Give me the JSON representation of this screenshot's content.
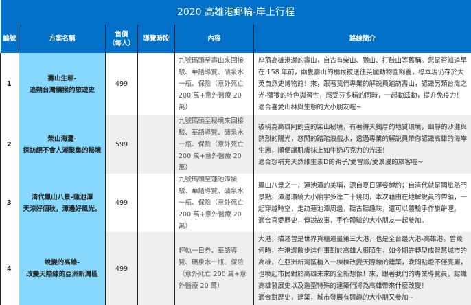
{
  "title": "2020 高雄港郵輪-岸上行程",
  "headers": {
    "no": "編號",
    "name": "方案名稱",
    "price": "售價",
    "price_unit": "（每人）",
    "slot": "導覽時段",
    "content": "內容",
    "desc": "路線簡介"
  },
  "colors": {
    "header": "#0070C8",
    "name_cell": "#87D8FF",
    "alt_row": "#EFEFEF"
  },
  "rows": [
    {
      "no": "1",
      "name1": "壽山生態-",
      "name2": "追朔台灣獼猴的旅遊史",
      "price": "499",
      "slot": "",
      "content": "九號碼頭至壽山來回接駁、華語導覽、礦泉水一瓶、保險（意外死亡 200 萬+意外醫療 20 萬）",
      "desc": "座落高雄港邊的壽山，自古有柴山、猴山、打鼓山等舊稱。您是否知道早在 158 年前，兩隻壽山的獼猴被送往英國動物園飼養，標本現仍存於大英自然史博物館！來，跟著我們專業的解說員踏訪壽山，認識另類台灣之光-獼猴的特色與習性，感受芬多精的同時，一起動茲動，提升免疫力！",
      "desc2": "適合喜愛山林與生態的大小朋友喔~"
    },
    {
      "no": "2",
      "name1": "柴山海灘-",
      "name2": "探訪絕不會人潮聚集的秘境",
      "price": "599",
      "slot": "",
      "content": "九號碼頭至秘境來回接駁、華語導覽、礦泉水一瓶、保險（意外死亡 200 萬+意外醫療 20 萬）",
      "desc": "被稱為高雄阿朗壹的柴山秘境，有著得天獨厚的地質環境，幽靜的沙灘與熱烈的陽光，悠閒的踏踏浪戲水，透過專業的解說員帶你認識高雄的海岸生態，順便讓肌膚抹上如牛奶巧克力的光澤！",
      "desc2": "適合想補充天然維生素D的親子/愛冒險/愛浪漫的旅客喔~"
    },
    {
      "no": "3",
      "name1": "清代鳳山八景-蓮池潭",
      "name2": "天涼好個秋，潭邊好風光。",
      "price": "499",
      "slot": "",
      "content": "九號碼頭至蓮池潭接駁、華語導覽、礦泉水一瓶、保險（意外死亡 200 萬+意外醫療 20 萬）",
      "desc": "鳳山八景之一，蓮池潭的美稱，源自夏日蓮姿綽約；自清代就是國旅熱門景點。潭邊環繞大小廟宇多達二十幾間，本次藉由在地解說員的帶領，一起穿越時空，走訪蓮池潭周邊，聽古聽趣味，還可以體驗手作旗餅喔。",
      "desc2": "適合喜愛歷史，傳說故事，手作體驗的大小朋友一起參加。"
    },
    {
      "no": "4",
      "name1": "蛻變的高雄-",
      "name2": "改變天際線的亞洲新灣區",
      "price": "499",
      "slot": "",
      "content": "輕軌一日券、華語導覽、礦泉水一瓶、保險（意外死亡 200 萬+意外醫療 20 萬）",
      "desc": "大港，描述曾是世界貨櫃運量第三大港，也是全台最大港-高雄港。曾幾何時，在港邊散步這件事對於高雄人很陌生，如今期許轉型成智慧城市的高雄，在亞洲新灣區植入一棟棟改變天際線的建築，晚間點燈不僅亮麗，也喚起市民對於高雄未來的全新想像！來，跟著我們的專業導覽員，認識高雄發展史以及造型特殊的建築們將為高雄帶來什麼改變！",
      "desc2": "適合對歷史，建築，城市發展有興趣的大小朋又參加~"
    }
  ]
}
